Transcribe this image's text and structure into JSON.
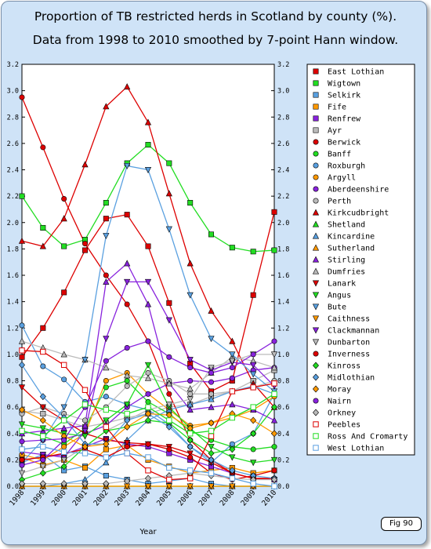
{
  "titles": {
    "line1": "Proportion of TB restricted herds in Scotland by county (%).",
    "line2": "Data from 1998 to 2010 smoothed by 7-point Hann window."
  },
  "fig_label": "Fig 90",
  "chart_data": {
    "type": "line",
    "title": "Proportion of TB restricted herds in Scotland by county (%). Data from 1998 to 2010 smoothed by 7-point Hann window.",
    "xlabel": "Year",
    "ylabel": "",
    "x": [
      "1998",
      "1999",
      "2000",
      "2001",
      "2002",
      "2003",
      "2004",
      "2005",
      "2006",
      "2007",
      "2008",
      "2009",
      "2010"
    ],
    "ylim": [
      0,
      3.2
    ],
    "yticks": [
      0.0,
      0.2,
      0.4,
      0.6,
      0.8,
      1.0,
      1.2,
      1.4,
      1.6,
      1.8,
      2.0,
      2.2,
      2.4,
      2.6,
      2.8,
      3.0,
      3.2
    ],
    "grid": false,
    "legend_position": "right",
    "series": [
      {
        "name": "East Lothian",
        "color": "#dd0000",
        "marker": "square",
        "values": [
          0.98,
          1.2,
          1.47,
          1.79,
          2.03,
          2.06,
          1.82,
          1.39,
          0.93,
          0.72,
          0.8,
          1.45,
          2.08
        ]
      },
      {
        "name": "Wigtown",
        "color": "#22dd22",
        "marker": "square",
        "values": [
          2.2,
          1.96,
          1.82,
          1.87,
          2.15,
          2.45,
          2.59,
          2.45,
          2.15,
          1.91,
          1.81,
          1.78,
          1.79
        ]
      },
      {
        "name": "Selkirk",
        "color": "#5aa0e0",
        "marker": "square",
        "values": [
          0.18,
          0.24,
          0.12,
          0.15,
          0.08,
          0.05,
          0.02,
          0.04,
          0.06,
          0.02,
          0.0,
          0.0,
          0.0
        ]
      },
      {
        "name": "Fife",
        "color": "#ff9900",
        "marker": "square",
        "values": [
          0.22,
          0.16,
          0.2,
          0.14,
          0.28,
          0.31,
          0.2,
          0.15,
          0.1,
          0.12,
          0.14,
          0.1,
          0.12
        ]
      },
      {
        "name": "Renfrew",
        "color": "#8822dd",
        "marker": "square",
        "values": [
          0.2,
          0.22,
          0.24,
          0.3,
          0.36,
          0.32,
          0.3,
          0.25,
          0.2,
          0.15,
          0.1,
          0.06,
          0.05
        ]
      },
      {
        "name": "Ayr",
        "color": "#bbbbbb",
        "marker": "square",
        "values": [
          0.57,
          0.55,
          0.5,
          0.45,
          0.48,
          0.52,
          0.55,
          0.6,
          0.62,
          0.68,
          0.72,
          0.8,
          0.88
        ]
      },
      {
        "name": "Berwick",
        "color": "#dd0000",
        "marker": "circle",
        "values": [
          2.95,
          2.57,
          2.18,
          1.84,
          1.6,
          1.38,
          1.1,
          0.7,
          0.35,
          0.2,
          0.1,
          0.06,
          0.06
        ]
      },
      {
        "name": "Banff",
        "color": "#22dd22",
        "marker": "circle",
        "values": [
          0.42,
          0.38,
          0.32,
          0.44,
          0.75,
          0.8,
          0.64,
          0.55,
          0.42,
          0.35,
          0.3,
          0.28,
          0.3
        ]
      },
      {
        "name": "Roxburgh",
        "color": "#5aa0e0",
        "marker": "circle",
        "values": [
          1.22,
          0.91,
          0.81,
          0.64,
          0.68,
          0.62,
          0.58,
          0.47,
          0.3,
          0.18,
          0.32,
          0.4,
          0.7
        ]
      },
      {
        "name": "Argyll",
        "color": "#ff9900",
        "marker": "circle",
        "values": [
          0.24,
          0.2,
          0.3,
          0.4,
          0.8,
          0.86,
          0.7,
          0.58,
          0.46,
          0.48,
          0.52,
          0.58,
          0.68
        ]
      },
      {
        "name": "Aberdeenshire",
        "color": "#8822dd",
        "marker": "circle",
        "values": [
          0.34,
          0.35,
          0.36,
          0.4,
          0.46,
          0.6,
          0.7,
          0.78,
          0.8,
          0.79,
          0.82,
          0.88,
          0.9
        ]
      },
      {
        "name": "Perth",
        "color": "#bbbbbb",
        "marker": "circle",
        "values": [
          0.55,
          0.6,
          0.55,
          0.5,
          0.6,
          0.76,
          0.86,
          0.8,
          0.7,
          0.7,
          0.72,
          0.75,
          0.8
        ]
      },
      {
        "name": "Kirkcudbright",
        "color": "#dd0000",
        "marker": "triangle-up",
        "values": [
          1.86,
          1.82,
          2.03,
          2.44,
          2.88,
          3.03,
          2.76,
          2.22,
          1.69,
          1.33,
          1.1,
          0.78,
          0.6
        ]
      },
      {
        "name": "Shetland",
        "color": "#22dd22",
        "marker": "triangle-up",
        "values": [
          0.0,
          0.0,
          0.0,
          0.0,
          0.0,
          0.0,
          0.0,
          0.0,
          0.0,
          0.0,
          0.0,
          0.0,
          0.0
        ]
      },
      {
        "name": "Kincardine",
        "color": "#5aa0e0",
        "marker": "triangle-up",
        "values": [
          0.0,
          0.0,
          0.02,
          0.05,
          0.18,
          0.35,
          0.5,
          0.58,
          0.62,
          0.66,
          0.72,
          0.76,
          0.7
        ]
      },
      {
        "name": "Sutherland",
        "color": "#ff9900",
        "marker": "triangle-up",
        "values": [
          0.0,
          0.0,
          0.0,
          0.0,
          0.0,
          0.0,
          0.0,
          0.0,
          0.0,
          0.0,
          0.0,
          0.0,
          0.0
        ]
      },
      {
        "name": "Stirling",
        "color": "#8822dd",
        "marker": "triangle-up",
        "values": [
          0.4,
          0.42,
          0.44,
          0.46,
          1.55,
          1.69,
          1.38,
          0.78,
          0.58,
          0.6,
          0.62,
          0.58,
          0.5
        ]
      },
      {
        "name": "Dumfries",
        "color": "#bbbbbb",
        "marker": "triangle-up",
        "values": [
          1.1,
          1.05,
          1.0,
          0.96,
          0.9,
          0.84,
          0.82,
          0.78,
          0.74,
          0.86,
          0.98,
          0.95,
          0.9
        ]
      },
      {
        "name": "Lanark",
        "color": "#dd0000",
        "marker": "triangle-down",
        "values": [
          0.75,
          0.6,
          0.5,
          0.4,
          0.35,
          0.33,
          0.32,
          0.3,
          0.25,
          0.18,
          0.1,
          0.06,
          0.05
        ]
      },
      {
        "name": "Angus",
        "color": "#22dd22",
        "marker": "triangle-down",
        "values": [
          0.47,
          0.44,
          0.4,
          0.38,
          0.5,
          0.62,
          0.92,
          0.6,
          0.44,
          0.3,
          0.22,
          0.18,
          0.2
        ]
      },
      {
        "name": "Bute",
        "color": "#5aa0e0",
        "marker": "triangle-down",
        "values": [
          0.18,
          0.35,
          0.6,
          0.96,
          1.9,
          2.43,
          2.4,
          1.95,
          1.45,
          1.12,
          1.0,
          0.85,
          0.72
        ]
      },
      {
        "name": "Caithness",
        "color": "#ff9900",
        "marker": "triangle-down",
        "values": [
          0.0,
          0.0,
          0.0,
          0.0,
          0.0,
          0.0,
          0.0,
          0.0,
          0.0,
          0.0,
          0.0,
          0.0,
          0.0
        ]
      },
      {
        "name": "Clackmannan",
        "color": "#8822dd",
        "marker": "triangle-down",
        "values": [
          0.26,
          0.24,
          0.22,
          0.42,
          1.12,
          1.55,
          1.55,
          1.26,
          0.96,
          0.88,
          0.94,
          0.92,
          0.76
        ]
      },
      {
        "name": "Dunbarton",
        "color": "#bbbbbb",
        "marker": "triangle-down",
        "values": [
          0.1,
          0.15,
          0.2,
          0.3,
          0.42,
          0.5,
          0.58,
          0.62,
          0.66,
          0.9,
          0.95,
          1.0,
          1.0
        ]
      },
      {
        "name": "Inverness",
        "color": "#dd0000",
        "marker": "circle",
        "values": [
          0.2,
          0.22,
          0.25,
          0.28,
          0.22,
          0.3,
          0.32,
          0.28,
          0.22,
          0.1,
          0.05,
          0.08,
          0.12
        ]
      },
      {
        "name": "Kinross",
        "color": "#22dd22",
        "marker": "diamond",
        "values": [
          0.05,
          0.1,
          0.15,
          0.3,
          0.42,
          0.45,
          0.5,
          0.48,
          0.35,
          0.25,
          0.28,
          0.4,
          0.6
        ]
      },
      {
        "name": "Midlothian",
        "color": "#5aa0e0",
        "marker": "diamond",
        "values": [
          0.92,
          0.68,
          0.52,
          0.32,
          0.32,
          0.5,
          0.55,
          0.45,
          0.3,
          0.2,
          0.12,
          0.08,
          0.06
        ]
      },
      {
        "name": "Moray",
        "color": "#ff9900",
        "marker": "diamond",
        "values": [
          0.58,
          0.5,
          0.38,
          0.3,
          0.32,
          0.45,
          0.55,
          0.54,
          0.44,
          0.48,
          0.55,
          0.5,
          0.4
        ]
      },
      {
        "name": "Nairn",
        "color": "#8822dd",
        "marker": "circle",
        "values": [
          0.16,
          0.2,
          0.35,
          0.6,
          0.95,
          1.05,
          1.1,
          0.98,
          0.9,
          0.86,
          0.9,
          1.0,
          1.1
        ]
      },
      {
        "name": "Orkney",
        "color": "#bbbbbb",
        "marker": "diamond",
        "values": [
          0.02,
          0.02,
          0.02,
          0.02,
          0.02,
          0.04,
          0.06,
          0.08,
          0.1,
          0.08,
          0.06,
          0.05,
          0.05
        ]
      },
      {
        "name": "Peebles",
        "color": "#dd0000",
        "marker": "square-open",
        "values": [
          1.03,
          1.02,
          0.92,
          0.73,
          0.45,
          0.25,
          0.12,
          0.05,
          0.06,
          0.38,
          0.72,
          0.75,
          0.78
        ]
      },
      {
        "name": "Ross And Cromarty",
        "color": "#22dd22",
        "marker": "square-open",
        "values": [
          0.42,
          0.38,
          0.5,
          0.62,
          0.58,
          0.55,
          0.6,
          0.5,
          0.4,
          0.42,
          0.52,
          0.6,
          0.7
        ]
      },
      {
        "name": "West Lothian",
        "color": "#5aa0e0",
        "marker": "square-open",
        "values": [
          0.28,
          0.3,
          0.26,
          0.25,
          0.22,
          0.25,
          0.22,
          0.14,
          0.12,
          0.1,
          0.06,
          0.02,
          0.0
        ]
      }
    ]
  }
}
